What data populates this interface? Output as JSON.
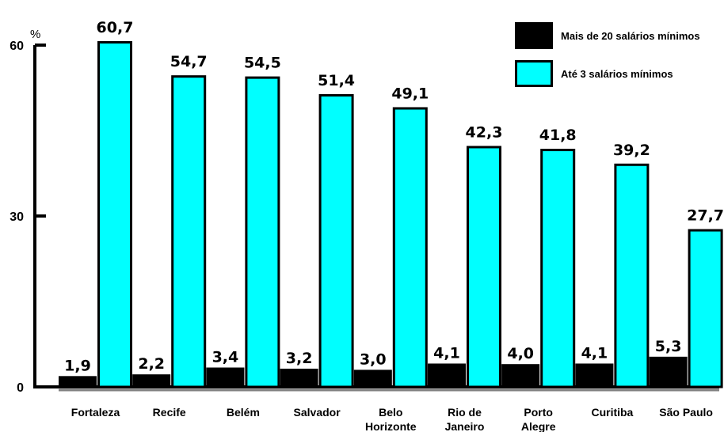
{
  "chart_data": {
    "type": "bar",
    "unit_label": "%",
    "categories": [
      [
        "Fortaleza"
      ],
      [
        "Recife"
      ],
      [
        "Belém"
      ],
      [
        "Salvador"
      ],
      [
        "Belo",
        "Horizonte"
      ],
      [
        "Rio de",
        "Janeiro"
      ],
      [
        "Porto",
        "Alegre"
      ],
      [
        "Curitiba"
      ],
      [
        "São Paulo"
      ]
    ],
    "series": [
      {
        "name": "Mais de 20 salários mínimos",
        "color": "#000000",
        "values": [
          1.9,
          2.2,
          3.4,
          3.2,
          3.0,
          4.1,
          4.0,
          4.1,
          5.3
        ],
        "labels": [
          "1,9",
          "2,2",
          "3,4",
          "3,2",
          "3,0",
          "4,1",
          "4,0",
          "4,1",
          "5,3"
        ]
      },
      {
        "name": "Até 3 salários mínimos",
        "color": "#00ffff",
        "values": [
          60.7,
          54.7,
          54.5,
          51.4,
          49.1,
          42.3,
          41.8,
          39.2,
          27.7
        ],
        "labels": [
          "60,7",
          "54,7",
          "54,5",
          "51,4",
          "49,1",
          "42,3",
          "41,8",
          "39,2",
          "27,7"
        ]
      }
    ],
    "yticks": [
      "0",
      "30",
      "60"
    ],
    "ylim": [
      0,
      60
    ],
    "grid": false,
    "legend": "top-right"
  }
}
